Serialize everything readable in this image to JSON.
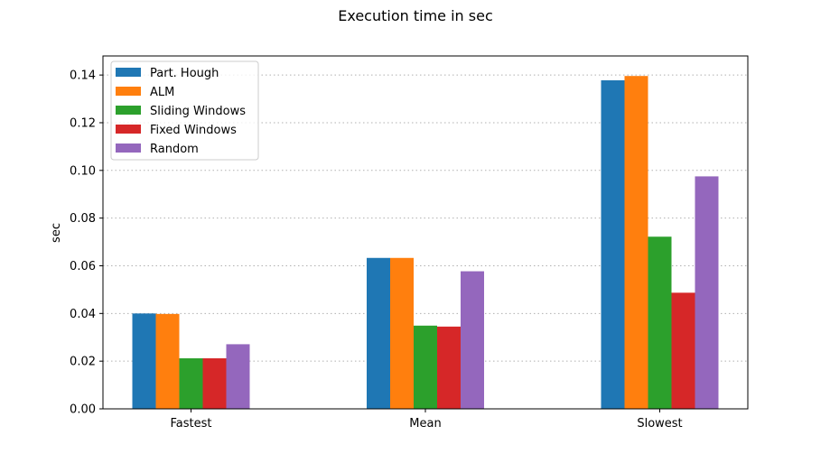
{
  "chart_data": {
    "type": "bar",
    "title": "Execution time in sec",
    "xlabel": "",
    "ylabel": "sec",
    "categories": [
      "Fastest",
      "Mean",
      "Slowest"
    ],
    "ylim": [
      0,
      0.148
    ],
    "yticks": [
      "0.00",
      "0.02",
      "0.04",
      "0.06",
      "0.08",
      "0.10",
      "0.12",
      "0.14"
    ],
    "grid": "y-dotted",
    "legend_position": "top-left",
    "series": [
      {
        "name": "Part. Hough",
        "color": "#1f77b4",
        "values": [
          0.04,
          0.0633,
          0.1378
        ]
      },
      {
        "name": "ALM",
        "color": "#ff7f0e",
        "values": [
          0.0398,
          0.0633,
          0.1396
        ]
      },
      {
        "name": "Sliding Windows",
        "color": "#2ca02c",
        "values": [
          0.0212,
          0.0349,
          0.0722
        ]
      },
      {
        "name": "Fixed Windows",
        "color": "#d62728",
        "values": [
          0.0212,
          0.0345,
          0.0487
        ]
      },
      {
        "name": "Random",
        "color": "#9467bd",
        "values": [
          0.0271,
          0.0577,
          0.0975
        ]
      }
    ]
  }
}
